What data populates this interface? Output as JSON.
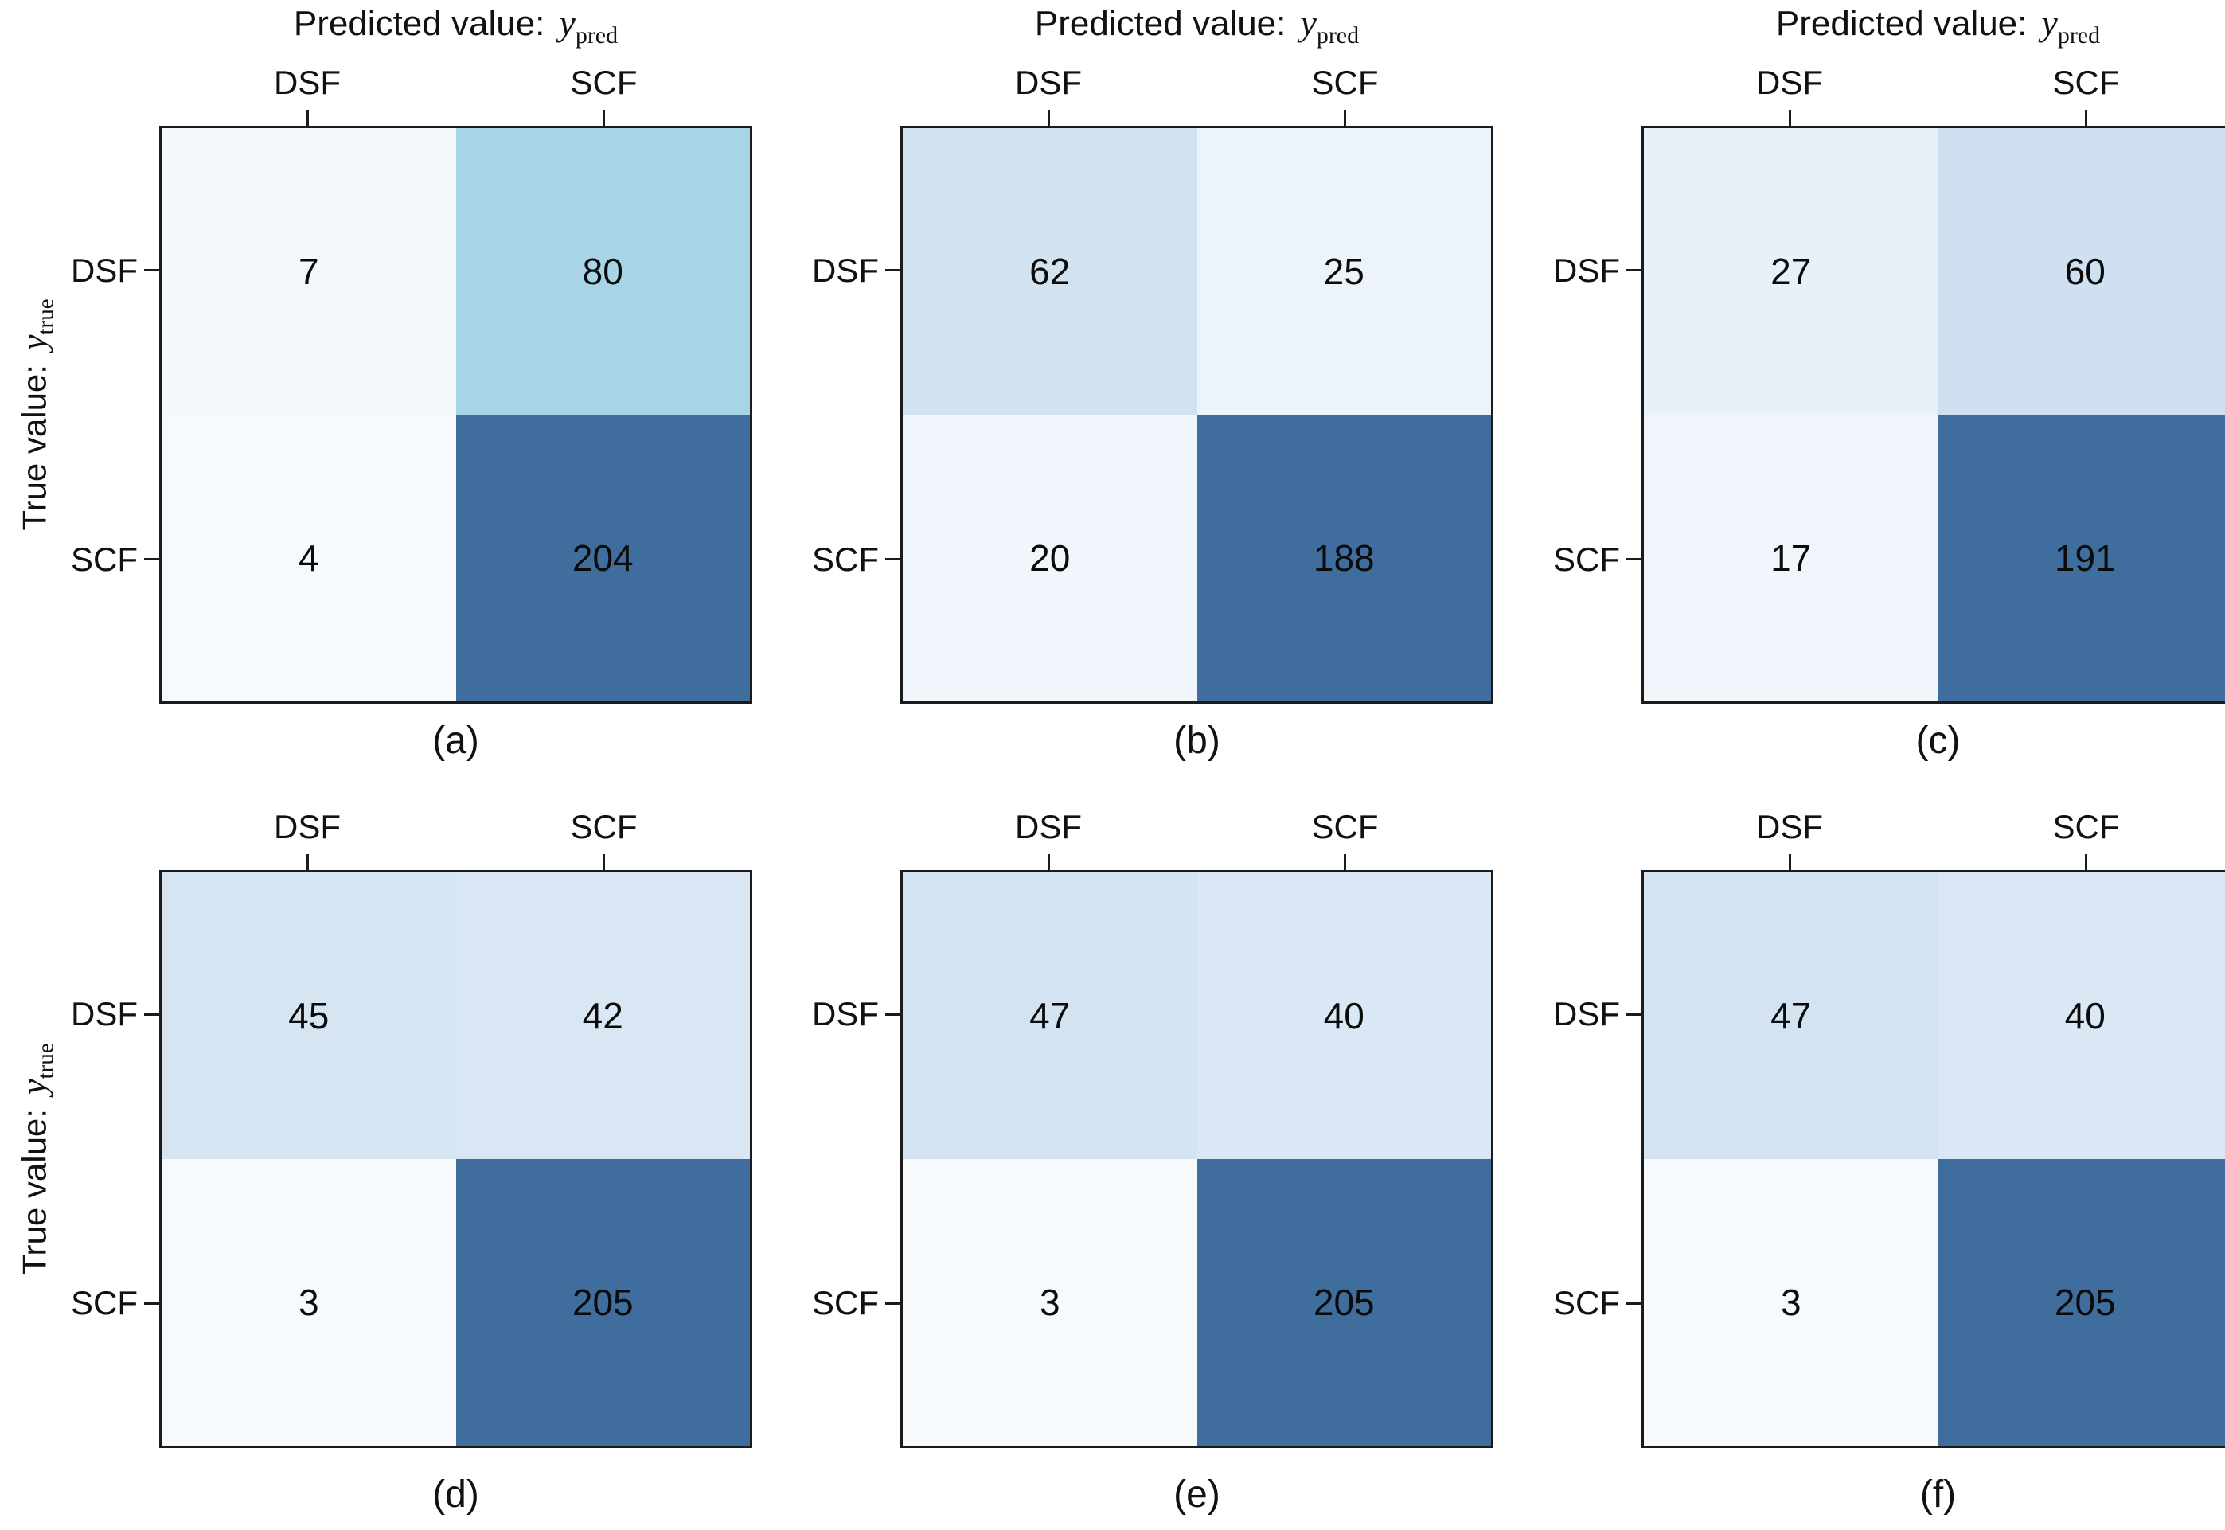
{
  "figure": {
    "background": "#ffffff",
    "border_color": "#1b1b1b",
    "text_color": "#111111",
    "dark_cell_color": "#3f6d9d",
    "predicted_axis": {
      "prefix": "Predicted value:",
      "math_base": "y",
      "math_sub": "pred"
    },
    "true_axis": {
      "prefix": "True value:",
      "math_base": "y",
      "math_sub": "true"
    }
  },
  "chart_data": [
    {
      "type": "heatmap",
      "panel": "a",
      "label": "(a)",
      "title": "Predicted value: y_pred",
      "ylabel": "True value: y_true",
      "x_categories": [
        "DSF",
        "SCF"
      ],
      "y_categories": [
        "DSF",
        "SCF"
      ],
      "values": [
        [
          7,
          80
        ],
        [
          4,
          204
        ]
      ],
      "cell_colors": [
        [
          "#f3f8fc",
          "#a8d4e7"
        ],
        [
          "#f6fafd",
          "#3f6d9d"
        ]
      ]
    },
    {
      "type": "heatmap",
      "panel": "b",
      "label": "(b)",
      "title": "Predicted value: y_pred",
      "x_categories": [
        "DSF",
        "SCF"
      ],
      "y_categories": [
        "DSF",
        "SCF"
      ],
      "values": [
        [
          62,
          25
        ],
        [
          20,
          188
        ]
      ],
      "cell_colors": [
        [
          "#d1e3f1",
          "#ecf3f9"
        ],
        [
          "#f0f6fb",
          "#3f6d9d"
        ]
      ]
    },
    {
      "type": "heatmap",
      "panel": "c",
      "label": "(c)",
      "title": "Predicted value: y_pred",
      "x_categories": [
        "DSF",
        "SCF"
      ],
      "y_categories": [
        "DSF",
        "SCF"
      ],
      "values": [
        [
          27,
          60
        ],
        [
          17,
          191
        ]
      ],
      "cell_colors": [
        [
          "#e8f1f8",
          "#cfe1f0"
        ],
        [
          "#f0f6fb",
          "#3f6d9d"
        ]
      ]
    },
    {
      "type": "heatmap",
      "panel": "d",
      "label": "(d)",
      "ylabel": "True value: y_true",
      "x_categories": [
        "DSF",
        "SCF"
      ],
      "y_categories": [
        "DSF",
        "SCF"
      ],
      "values": [
        [
          45,
          42
        ],
        [
          3,
          205
        ]
      ],
      "cell_colors": [
        [
          "#d6e5f2",
          "#d8e7f3"
        ],
        [
          "#f6fafd",
          "#3f6d9d"
        ]
      ]
    },
    {
      "type": "heatmap",
      "panel": "e",
      "label": "(e)",
      "x_categories": [
        "DSF",
        "SCF"
      ],
      "y_categories": [
        "DSF",
        "SCF"
      ],
      "values": [
        [
          47,
          40
        ],
        [
          3,
          205
        ]
      ],
      "cell_colors": [
        [
          "#d3e3f1",
          "#d9e8f4"
        ],
        [
          "#f6fafd",
          "#3f6d9d"
        ]
      ]
    },
    {
      "type": "heatmap",
      "panel": "f",
      "label": "(f)",
      "x_categories": [
        "DSF",
        "SCF"
      ],
      "y_categories": [
        "DSF",
        "SCF"
      ],
      "values": [
        [
          47,
          40
        ],
        [
          3,
          205
        ]
      ],
      "cell_colors": [
        [
          "#d3e3f1",
          "#d9e8f4"
        ],
        [
          "#f6fafd",
          "#3f6d9d"
        ]
      ]
    }
  ]
}
